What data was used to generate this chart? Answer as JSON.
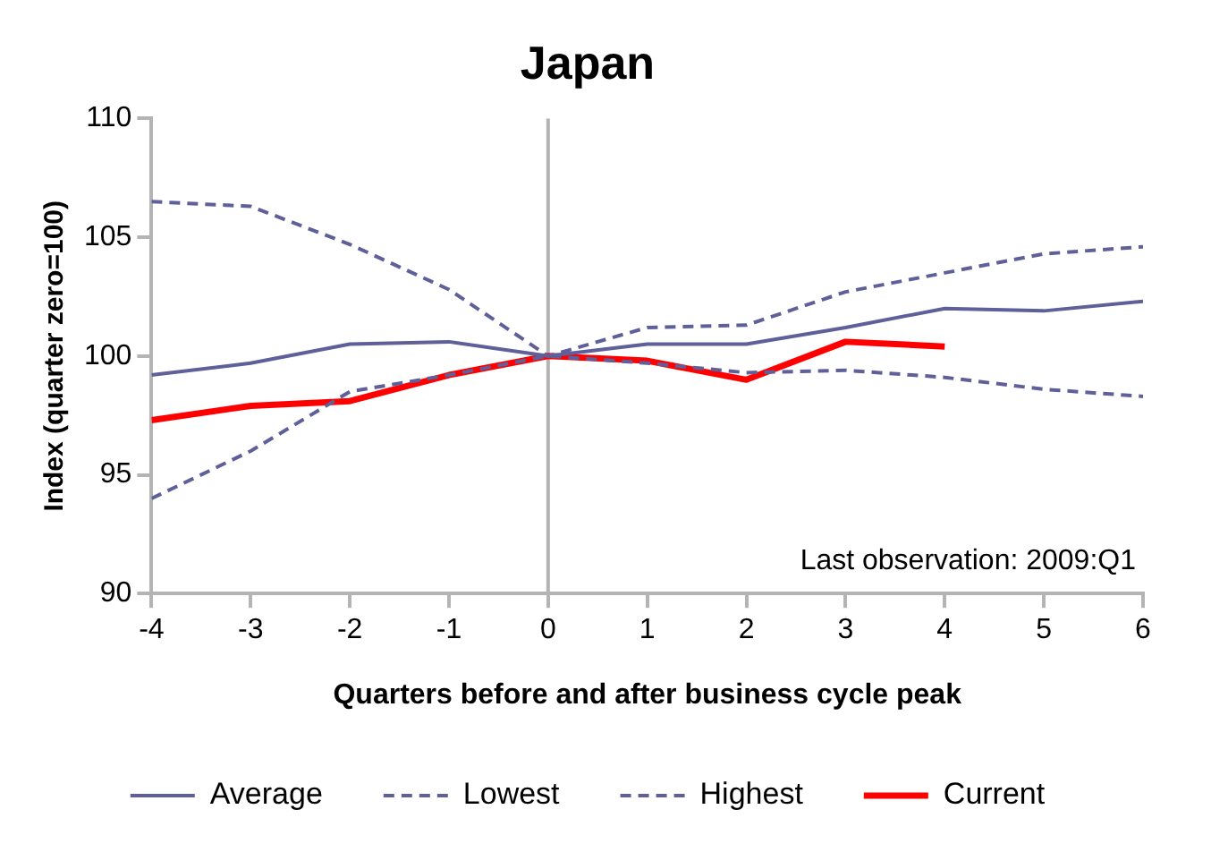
{
  "chart_data": {
    "type": "line",
    "title": "Japan",
    "xlabel": "Quarters before and after business cycle peak",
    "ylabel": "Index (quarter zero=100)",
    "x": [
      -4,
      -3,
      -2,
      -1,
      0,
      1,
      2,
      3,
      4,
      5,
      6
    ],
    "xlim": [
      -4,
      6
    ],
    "xticks": [
      -4,
      -3,
      -2,
      -1,
      0,
      1,
      2,
      3,
      4,
      5,
      6
    ],
    "ylim": [
      90,
      110
    ],
    "yticks": [
      90,
      95,
      100,
      105,
      110
    ],
    "series": [
      {
        "name": "Average",
        "color": "#5f5f9a",
        "line_style": "solid",
        "values": [
          99.2,
          99.7,
          100.5,
          100.6,
          100,
          100.5,
          100.5,
          101.2,
          102,
          101.9,
          102.3
        ]
      },
      {
        "name": "Lowest",
        "color": "#5f5f9a",
        "line_style": "dashed",
        "values": [
          94.0,
          96.0,
          98.5,
          99.2,
          100,
          99.7,
          99.3,
          99.4,
          99.1,
          98.6,
          98.3
        ]
      },
      {
        "name": "Highest",
        "color": "#5f5f9a",
        "line_style": "dashed",
        "values": [
          106.5,
          106.3,
          104.7,
          102.8,
          100,
          101.2,
          101.3,
          102.7,
          103.5,
          104.3,
          104.6
        ]
      },
      {
        "name": "Current",
        "color": "#ff0000",
        "line_style": "solid",
        "values": [
          97.3,
          97.9,
          98.1,
          99.2,
          100,
          99.8,
          99.0,
          100.6,
          100.4,
          null,
          null
        ]
      }
    ],
    "ref_lines": [
      {
        "axis": "x",
        "value": 0,
        "color": "#b4b4b4"
      }
    ],
    "annotations": [
      "Last observation: 2009:Q1"
    ],
    "grid": false,
    "legend": "bottom",
    "marker": "none"
  }
}
